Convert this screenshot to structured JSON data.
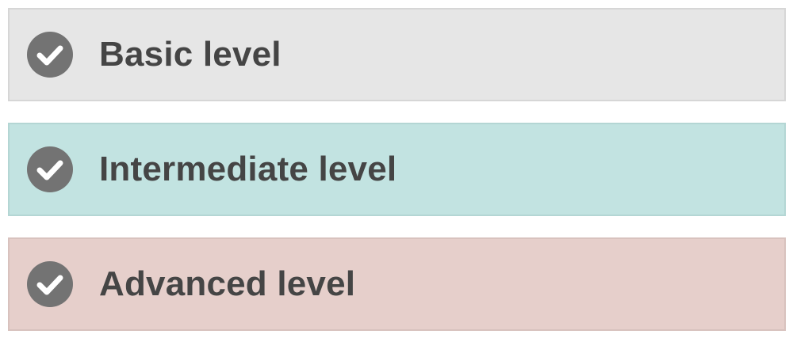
{
  "levels": [
    {
      "label": "Basic level",
      "color": "#e6e6e6",
      "icon": "check-circle-icon"
    },
    {
      "label": "Intermediate level",
      "color": "#c2e3e1",
      "icon": "check-circle-icon"
    },
    {
      "label": "Advanced level",
      "color": "#e6cfcb",
      "icon": "check-circle-icon"
    }
  ],
  "icon_color": "#737373"
}
